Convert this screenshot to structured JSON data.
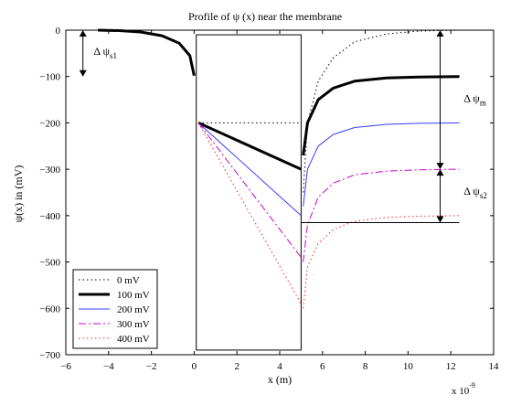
{
  "chart_data": {
    "type": "line",
    "title": "Profile of ψ (x) near the membrane",
    "xlabel": "x (m)",
    "ylabel": "ψ(x) in (mV)",
    "x_multiplier": "x 10",
    "x_multiplier_exp": "-9",
    "xlim": [
      -6,
      14
    ],
    "ylim": [
      -700,
      0
    ],
    "xticks": [
      -6,
      -4,
      -2,
      0,
      2,
      4,
      6,
      8,
      10,
      12,
      14
    ],
    "yticks": [
      0,
      -100,
      -200,
      -300,
      -400,
      -500,
      -600,
      -700
    ],
    "grid": false,
    "legend_position": "bottom-left",
    "membrane_box": {
      "x": [
        0.1,
        5.0
      ],
      "y": [
        -690,
        -10
      ]
    },
    "series": [
      {
        "name": "0 mV",
        "color": "#000000",
        "dash": "1.5,3",
        "width": 1,
        "segments": [
          [
            [
              -4.5,
              0
            ],
            [
              -3.5,
              -1
            ],
            [
              -2.5,
              -4
            ],
            [
              -1.5,
              -12
            ],
            [
              -0.7,
              -28
            ],
            [
              -0.2,
              -55
            ],
            [
              0.0,
              -98
            ]
          ],
          [
            [
              0.2,
              -200
            ],
            [
              5.0,
              -200
            ]
          ],
          [
            [
              5.1,
              -350
            ],
            [
              5.3,
              -200
            ],
            [
              5.8,
              -110
            ],
            [
              6.5,
              -60
            ],
            [
              7.5,
              -25
            ],
            [
              9,
              -8
            ],
            [
              10.5,
              -2
            ],
            [
              12.4,
              0
            ]
          ]
        ]
      },
      {
        "name": "100 mV",
        "color": "#000000",
        "dash": "",
        "width": 3,
        "segments": [
          [
            [
              -4.5,
              0
            ],
            [
              -3.5,
              -1
            ],
            [
              -2.5,
              -4
            ],
            [
              -1.5,
              -12
            ],
            [
              -0.7,
              -28
            ],
            [
              -0.2,
              -55
            ],
            [
              0.0,
              -98
            ]
          ],
          [
            [
              0.2,
              -200
            ],
            [
              5.0,
              -300
            ]
          ],
          [
            [
              5.1,
              -270
            ],
            [
              5.3,
              -200
            ],
            [
              5.8,
              -150
            ],
            [
              6.5,
              -125
            ],
            [
              7.5,
              -110
            ],
            [
              9,
              -103
            ],
            [
              10.5,
              -101
            ],
            [
              12.4,
              -100
            ]
          ]
        ]
      },
      {
        "name": "200 mV",
        "color": "#3a3aff",
        "dash": "",
        "width": 1,
        "segments": [
          [
            [
              0.2,
              -200
            ],
            [
              5.0,
              -400
            ]
          ],
          [
            [
              5.1,
              -380
            ],
            [
              5.3,
              -300
            ],
            [
              5.8,
              -250
            ],
            [
              6.5,
              -225
            ],
            [
              7.5,
              -210
            ],
            [
              9,
              -203
            ],
            [
              10.5,
              -201
            ],
            [
              12.4,
              -200
            ]
          ]
        ]
      },
      {
        "name": "300 mV",
        "color": "#cc00cc",
        "dash": "8,3,2,3",
        "width": 1,
        "segments": [
          [
            [
              0.2,
              -200
            ],
            [
              5.0,
              -490
            ]
          ],
          [
            [
              5.1,
              -500
            ],
            [
              5.3,
              -420
            ],
            [
              5.8,
              -360
            ],
            [
              6.5,
              -330
            ],
            [
              7.5,
              -312
            ],
            [
              9,
              -304
            ],
            [
              10.5,
              -301
            ],
            [
              12.4,
              -300
            ]
          ]
        ]
      },
      {
        "name": "400 mV",
        "color": "#ff2020",
        "dash": "1.5,3",
        "width": 1,
        "segments": [
          [
            [
              0.2,
              -200
            ],
            [
              5.0,
              -590
            ]
          ],
          [
            [
              5.1,
              -600
            ],
            [
              5.3,
              -510
            ],
            [
              5.8,
              -460
            ],
            [
              6.5,
              -430
            ],
            [
              7.5,
              -412
            ],
            [
              9,
              -404
            ],
            [
              10.5,
              -401
            ],
            [
              12.4,
              -400
            ]
          ]
        ]
      }
    ],
    "reference_lines": [
      {
        "from": [
          5.0,
          -415
        ],
        "to": [
          12.4,
          -415
        ],
        "color": "#000000",
        "width": 1
      }
    ],
    "annotations": [
      {
        "label": "Δ ψ",
        "sub": "s1",
        "arrow_x": -5.2,
        "y_from": 0,
        "y_to": -100,
        "text_at": [
          -4.7,
          -53
        ]
      },
      {
        "label": "Δ ψ",
        "sub": "m",
        "arrow_x": 11.5,
        "y_from": 0,
        "y_to": -300,
        "text_at": [
          12.6,
          -155
        ]
      },
      {
        "label": "Δ ψ",
        "sub": "s2",
        "arrow_x": 11.5,
        "y_from": -300,
        "y_to": -415,
        "text_at": [
          12.6,
          -355
        ]
      }
    ]
  }
}
